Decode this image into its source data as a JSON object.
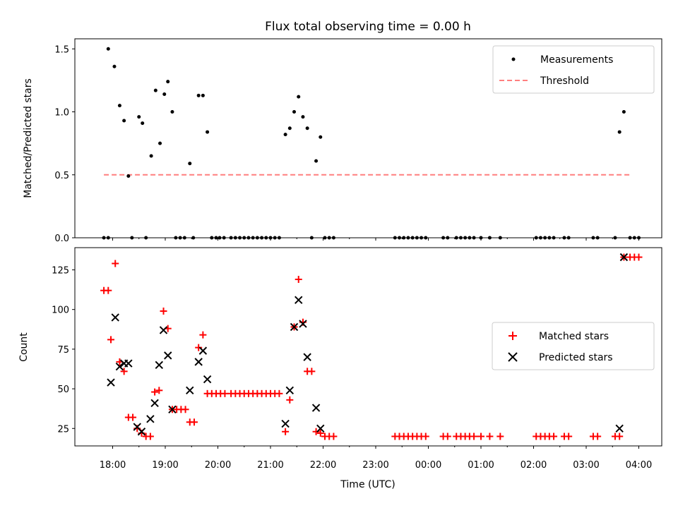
{
  "chart_data": [
    {
      "type": "scatter",
      "title": "Flux total observing time = 0.00 h",
      "xlabel": "",
      "ylabel": "Matched/Predicted stars",
      "ylim": [
        0,
        1.58
      ],
      "yticks": [
        "0.0",
        "0.5",
        "1.0",
        "1.5"
      ],
      "ytick_values": [
        0,
        0.5,
        1.0,
        1.5
      ],
      "legend_placement": "top-right",
      "threshold": {
        "name": "Threshold",
        "value": 0.5,
        "x_range": [
          "17:50",
          "03:50"
        ],
        "color": "#ff7f7f"
      },
      "series": [
        {
          "name": "Measurements",
          "color": "#000000",
          "marker": "dot",
          "points": [
            [
              "17:55",
              1.5
            ],
            [
              "18:02",
              1.36
            ],
            [
              "18:08",
              1.05
            ],
            [
              "18:13",
              0.93
            ],
            [
              "18:18",
              0.49
            ],
            [
              "18:30",
              0.96
            ],
            [
              "18:34",
              0.91
            ],
            [
              "18:44",
              0.65
            ],
            [
              "18:49",
              1.17
            ],
            [
              "18:54",
              0.75
            ],
            [
              "18:59",
              1.14
            ],
            [
              "19:03",
              1.24
            ],
            [
              "19:08",
              1.0
            ],
            [
              "19:28",
              0.59
            ],
            [
              "19:38",
              1.13
            ],
            [
              "19:43",
              1.13
            ],
            [
              "19:48",
              0.84
            ],
            [
              "21:17",
              0.82
            ],
            [
              "21:22",
              0.87
            ],
            [
              "21:27",
              1.0
            ],
            [
              "21:32",
              1.12
            ],
            [
              "21:37",
              0.96
            ],
            [
              "21:42",
              0.87
            ],
            [
              "21:52",
              0.61
            ],
            [
              "21:57",
              0.8
            ],
            [
              "03:38",
              0.84
            ],
            [
              "03:43",
              1.0
            ],
            [
              "17:50",
              0
            ],
            [
              "17:55",
              0
            ],
            [
              "18:22",
              0
            ],
            [
              "18:38",
              0
            ],
            [
              "19:12",
              0
            ],
            [
              "19:17",
              0
            ],
            [
              "19:22",
              0
            ],
            [
              "19:32",
              0
            ],
            [
              "19:53",
              0
            ],
            [
              "19:58",
              0
            ],
            [
              "20:02",
              0
            ],
            [
              "20:07",
              0
            ],
            [
              "20:15",
              0
            ],
            [
              "20:20",
              0
            ],
            [
              "20:25",
              0
            ],
            [
              "20:30",
              0
            ],
            [
              "20:35",
              0
            ],
            [
              "20:40",
              0
            ],
            [
              "20:45",
              0
            ],
            [
              "20:50",
              0
            ],
            [
              "20:55",
              0
            ],
            [
              "21:00",
              0
            ],
            [
              "21:05",
              0
            ],
            [
              "21:10",
              0
            ],
            [
              "21:47",
              0
            ],
            [
              "22:02",
              0
            ],
            [
              "22:07",
              0
            ],
            [
              "22:12",
              0
            ],
            [
              "23:22",
              0
            ],
            [
              "23:27",
              0
            ],
            [
              "23:32",
              0
            ],
            [
              "23:37",
              0
            ],
            [
              "23:42",
              0
            ],
            [
              "23:47",
              0
            ],
            [
              "23:52",
              0
            ],
            [
              "23:57",
              0
            ],
            [
              "00:17",
              0
            ],
            [
              "00:22",
              0
            ],
            [
              "00:32",
              0
            ],
            [
              "00:37",
              0
            ],
            [
              "00:42",
              0
            ],
            [
              "00:47",
              0
            ],
            [
              "00:52",
              0
            ],
            [
              "01:00",
              0
            ],
            [
              "01:10",
              0
            ],
            [
              "01:22",
              0
            ],
            [
              "02:03",
              0
            ],
            [
              "02:08",
              0
            ],
            [
              "02:13",
              0
            ],
            [
              "02:18",
              0
            ],
            [
              "02:23",
              0
            ],
            [
              "02:35",
              0
            ],
            [
              "02:40",
              0
            ],
            [
              "03:08",
              0
            ],
            [
              "03:13",
              0
            ],
            [
              "03:33",
              0
            ],
            [
              "03:50",
              0
            ],
            [
              "03:55",
              0
            ],
            [
              "04:00",
              0
            ]
          ]
        }
      ]
    },
    {
      "type": "scatter",
      "title": "",
      "xlabel": "Time (UTC)",
      "ylabel": "Count",
      "ylim": [
        14,
        139
      ],
      "yticks": [
        "25",
        "50",
        "75",
        "100",
        "125"
      ],
      "ytick_values": [
        25,
        50,
        75,
        100,
        125
      ],
      "xticks": [
        "18:00",
        "19:00",
        "20:00",
        "21:00",
        "22:00",
        "23:00",
        "00:00",
        "01:00",
        "02:00",
        "03:00",
        "04:00"
      ],
      "legend_placement": "center-right",
      "series": [
        {
          "name": "Matched stars",
          "color": "#ff0000",
          "marker": "plus",
          "points": [
            [
              "17:50",
              112
            ],
            [
              "17:55",
              112
            ],
            [
              "17:58",
              81
            ],
            [
              "18:03",
              129
            ],
            [
              "18:08",
              67
            ],
            [
              "18:13",
              61
            ],
            [
              "18:18",
              32
            ],
            [
              "18:23",
              32
            ],
            [
              "18:28",
              25
            ],
            [
              "18:33",
              22
            ],
            [
              "18:38",
              20
            ],
            [
              "18:43",
              20
            ],
            [
              "18:48",
              48
            ],
            [
              "18:53",
              49
            ],
            [
              "18:58",
              99
            ],
            [
              "19:03",
              88
            ],
            [
              "19:08",
              37
            ],
            [
              "19:13",
              37
            ],
            [
              "19:18",
              37
            ],
            [
              "19:23",
              37
            ],
            [
              "19:28",
              29
            ],
            [
              "19:33",
              29
            ],
            [
              "19:38",
              76
            ],
            [
              "19:43",
              84
            ],
            [
              "19:48",
              47
            ],
            [
              "19:53",
              47
            ],
            [
              "19:58",
              47
            ],
            [
              "20:03",
              47
            ],
            [
              "20:08",
              47
            ],
            [
              "20:15",
              47
            ],
            [
              "20:20",
              47
            ],
            [
              "20:25",
              47
            ],
            [
              "20:30",
              47
            ],
            [
              "20:35",
              47
            ],
            [
              "20:40",
              47
            ],
            [
              "20:45",
              47
            ],
            [
              "20:50",
              47
            ],
            [
              "20:55",
              47
            ],
            [
              "21:00",
              47
            ],
            [
              "21:05",
              47
            ],
            [
              "21:10",
              47
            ],
            [
              "21:17",
              23
            ],
            [
              "21:22",
              43
            ],
            [
              "21:27",
              89
            ],
            [
              "21:32",
              119
            ],
            [
              "21:37",
              92
            ],
            [
              "21:42",
              61
            ],
            [
              "21:47",
              61
            ],
            [
              "21:52",
              23
            ],
            [
              "21:57",
              22
            ],
            [
              "22:02",
              20
            ],
            [
              "22:07",
              20
            ],
            [
              "22:12",
              20
            ],
            [
              "23:22",
              20
            ],
            [
              "23:27",
              20
            ],
            [
              "23:32",
              20
            ],
            [
              "23:37",
              20
            ],
            [
              "23:42",
              20
            ],
            [
              "23:47",
              20
            ],
            [
              "23:52",
              20
            ],
            [
              "23:57",
              20
            ],
            [
              "00:17",
              20
            ],
            [
              "00:22",
              20
            ],
            [
              "00:32",
              20
            ],
            [
              "00:37",
              20
            ],
            [
              "00:42",
              20
            ],
            [
              "00:47",
              20
            ],
            [
              "00:52",
              20
            ],
            [
              "01:00",
              20
            ],
            [
              "01:10",
              20
            ],
            [
              "01:22",
              20
            ],
            [
              "02:03",
              20
            ],
            [
              "02:08",
              20
            ],
            [
              "02:13",
              20
            ],
            [
              "02:18",
              20
            ],
            [
              "02:23",
              20
            ],
            [
              "02:35",
              20
            ],
            [
              "02:40",
              20
            ],
            [
              "03:08",
              20
            ],
            [
              "03:13",
              20
            ],
            [
              "03:33",
              20
            ],
            [
              "03:38",
              20
            ],
            [
              "03:43",
              133
            ],
            [
              "03:50",
              133
            ],
            [
              "03:55",
              133
            ],
            [
              "04:00",
              133
            ]
          ]
        },
        {
          "name": "Predicted stars",
          "color": "#000000",
          "marker": "cross",
          "points": [
            [
              "17:58",
              54
            ],
            [
              "18:03",
              95
            ],
            [
              "18:08",
              64
            ],
            [
              "18:13",
              66
            ],
            [
              "18:18",
              66
            ],
            [
              "18:28",
              26
            ],
            [
              "18:33",
              23
            ],
            [
              "18:43",
              31
            ],
            [
              "18:48",
              41
            ],
            [
              "18:53",
              65
            ],
            [
              "18:58",
              87
            ],
            [
              "19:03",
              71
            ],
            [
              "19:08",
              37
            ],
            [
              "19:28",
              49
            ],
            [
              "19:38",
              67
            ],
            [
              "19:43",
              74
            ],
            [
              "19:48",
              56
            ],
            [
              "21:17",
              28
            ],
            [
              "21:22",
              49
            ],
            [
              "21:27",
              89
            ],
            [
              "21:32",
              106
            ],
            [
              "21:37",
              91
            ],
            [
              "21:42",
              70
            ],
            [
              "21:52",
              38
            ],
            [
              "21:57",
              25
            ],
            [
              "03:38",
              25
            ],
            [
              "03:43",
              133
            ]
          ]
        }
      ]
    }
  ]
}
